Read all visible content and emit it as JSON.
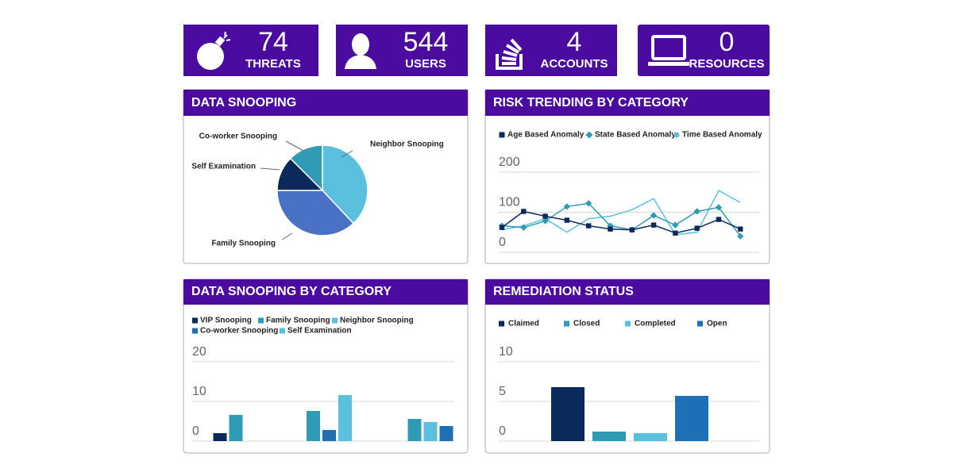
{
  "stats": [
    {
      "value": "74",
      "label": "THREATS"
    },
    {
      "value": "544",
      "label": "USERS"
    },
    {
      "value": "4",
      "label": "ACCOUNTS"
    },
    {
      "value": "0",
      "label": "RESOURCES"
    }
  ],
  "chart_data": [
    {
      "type": "pie",
      "title": "DATA SNOOPING",
      "categories": [
        "Neighbor Snooping",
        "Family Snooping",
        "Self Examination",
        "Co-worker Snooping"
      ],
      "values": [
        38,
        37,
        12.5,
        12.5
      ],
      "colors": [
        "#5bc0de",
        "#4a72c4",
        "#0b2a5b",
        "#2f9bb5"
      ]
    },
    {
      "type": "line",
      "title": "RISK TRENDING BY CATEGORY",
      "categories": [
        null,
        null,
        null,
        null,
        null,
        null,
        null,
        null,
        null,
        null,
        null,
        null
      ],
      "series": [
        {
          "name": "Age Based Anomaly",
          "color": "#0b2a5b",
          "marker": "square",
          "show_markers": true,
          "values": [
            62,
            102,
            90,
            80,
            66,
            58,
            56,
            68,
            48,
            60,
            82,
            58
          ]
        },
        {
          "name": "State Based Anomaly",
          "color": "#2f9bb5",
          "marker": "diamond",
          "show_markers": true,
          "values": [
            66,
            62,
            78,
            114,
            122,
            66,
            56,
            92,
            68,
            102,
            112,
            40
          ]
        },
        {
          "name": "Time Based Anomaly",
          "color": "#5bc0de",
          "marker": "circle",
          "show_markers": false,
          "values": [
            56,
            66,
            84,
            50,
            84,
            90,
            106,
            134,
            44,
            50,
            154,
            124
          ]
        }
      ],
      "ylim": [
        0,
        200
      ],
      "yticks": [
        0,
        100,
        200
      ],
      "grid": true
    },
    {
      "type": "grouped-bar",
      "title": "DATA SNOOPING BY CATEGORY",
      "categories": [
        null,
        null,
        null
      ],
      "series": [
        {
          "name": "VIP Snooping",
          "color": "#0b2a5b",
          "values": [
            2,
            null,
            null
          ]
        },
        {
          "name": "Family Snooping",
          "color": "#2f9bb5",
          "values": [
            6.6,
            7.6,
            5.6
          ]
        },
        {
          "name": "Neighbor Snooping",
          "color": "#5bc0de",
          "values": [
            null,
            null,
            4.8
          ]
        },
        {
          "name": "Co-worker Snooping",
          "color": "#1f6fb5",
          "values": [
            null,
            2.8,
            3.8
          ]
        },
        {
          "name": "Self Examination",
          "color": "#5bc0de",
          "values": [
            null,
            11.6,
            null
          ]
        }
      ],
      "ylim": [
        0,
        20
      ],
      "yticks": [
        0,
        10,
        20
      ],
      "grid": true
    },
    {
      "type": "bar",
      "title": "REMEDIATION STATUS",
      "categories": [
        "Claimed",
        "Closed",
        "Completed",
        "Open"
      ],
      "values": [
        6.8,
        1.2,
        1.0,
        5.7
      ],
      "colors": [
        "#0b2a5b",
        "#2f9bb5",
        "#5bc0de",
        "#1f6fb5"
      ],
      "ylim": [
        0,
        10
      ],
      "yticks": [
        0,
        5,
        10
      ],
      "grid": true
    }
  ]
}
